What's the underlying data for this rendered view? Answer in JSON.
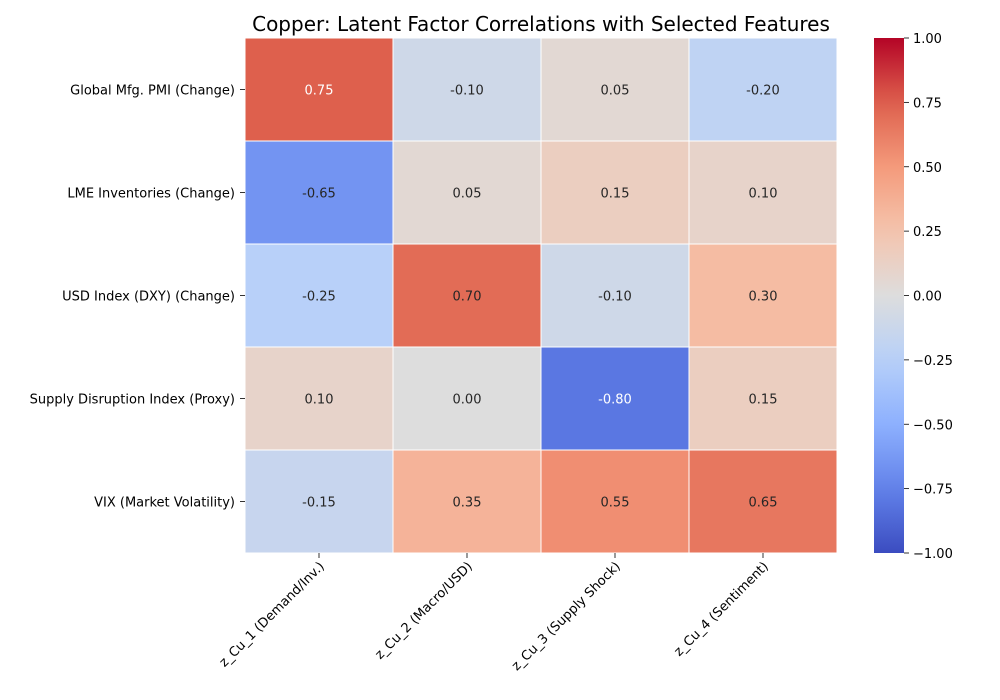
{
  "chart_data": {
    "type": "heatmap",
    "title": "Copper: Latent Factor Correlations with Selected Features",
    "columns": [
      "z_Cu_1 (Demand/Inv.)",
      "z_Cu_2 (Macro/USD)",
      "z_Cu_3 (Supply Shock)",
      "z_Cu_4 (Sentiment)"
    ],
    "rows": [
      "Global Mfg. PMI (Change)",
      "LME Inventories (Change)",
      "USD Index (DXY) (Change)",
      "Supply Disruption Index (Proxy)",
      "VIX (Market Volatility)"
    ],
    "values": [
      [
        0.75,
        -0.1,
        0.05,
        -0.2
      ],
      [
        -0.65,
        0.05,
        0.15,
        0.1
      ],
      [
        -0.25,
        0.7,
        -0.1,
        0.3
      ],
      [
        0.1,
        0.0,
        -0.8,
        0.15
      ],
      [
        -0.15,
        0.35,
        0.55,
        0.65
      ]
    ],
    "value_format": "0.00",
    "colormap": "coolwarm",
    "vmin": -1.0,
    "vmax": 1.0,
    "colorbar_ticks": [
      -1.0,
      -0.75,
      -0.5,
      -0.25,
      0.0,
      0.25,
      0.5,
      0.75,
      1.0
    ],
    "colorbar_tick_labels": [
      "−1.00",
      "−0.75",
      "−0.50",
      "−0.25",
      "0.00",
      "0.25",
      "0.50",
      "0.75",
      "1.00"
    ],
    "grid_line_color": "#ffffff"
  }
}
